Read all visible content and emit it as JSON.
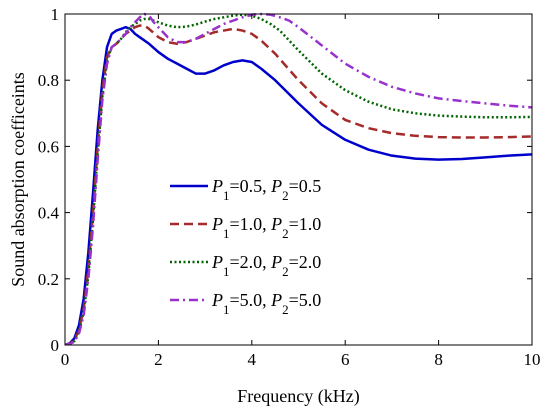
{
  "chart_data": {
    "type": "line",
    "xlabel": "Frequency (kHz)",
    "ylabel": "Sound absorption coefficeints",
    "xlim": [
      0,
      10
    ],
    "ylim": [
      0,
      1
    ],
    "xticks": [
      0,
      2,
      4,
      6,
      8,
      10
    ],
    "yticks": [
      0,
      0.2,
      0.4,
      0.6,
      0.8,
      1
    ],
    "grid": false,
    "legend_position": "center",
    "series": [
      {
        "name": "P1=0.5, P2=0.5",
        "color": "#0000CC",
        "dash": "solid",
        "x": [
          0,
          0.1,
          0.2,
          0.3,
          0.4,
          0.5,
          0.6,
          0.7,
          0.8,
          0.9,
          1.0,
          1.1,
          1.2,
          1.3,
          1.4,
          1.5,
          1.6,
          1.8,
          2.0,
          2.2,
          2.4,
          2.6,
          2.8,
          3.0,
          3.2,
          3.4,
          3.6,
          3.8,
          4.0,
          4.2,
          4.5,
          5.0,
          5.5,
          6.0,
          6.5,
          7.0,
          7.5,
          8.0,
          8.5,
          9.0,
          9.5,
          10.0
        ],
        "y": [
          0,
          0.005,
          0.02,
          0.06,
          0.14,
          0.28,
          0.46,
          0.65,
          0.8,
          0.9,
          0.94,
          0.95,
          0.955,
          0.96,
          0.955,
          0.94,
          0.93,
          0.91,
          0.885,
          0.865,
          0.85,
          0.835,
          0.82,
          0.82,
          0.83,
          0.845,
          0.855,
          0.86,
          0.855,
          0.835,
          0.8,
          0.73,
          0.665,
          0.62,
          0.59,
          0.572,
          0.563,
          0.56,
          0.562,
          0.567,
          0.572,
          0.576
        ]
      },
      {
        "name": "P1=1.0, P2=1.0",
        "color": "#A52A2A",
        "dash": "dashed",
        "x": [
          0,
          0.1,
          0.2,
          0.3,
          0.4,
          0.5,
          0.6,
          0.7,
          0.8,
          0.9,
          1.0,
          1.1,
          1.2,
          1.3,
          1.4,
          1.5,
          1.6,
          1.7,
          1.8,
          2.0,
          2.2,
          2.4,
          2.6,
          2.8,
          3.0,
          3.2,
          3.4,
          3.6,
          3.8,
          4.0,
          4.2,
          4.5,
          5.0,
          5.5,
          6.0,
          6.5,
          7.0,
          7.5,
          8.0,
          8.5,
          9.0,
          9.5,
          10.0
        ],
        "y": [
          0,
          0.004,
          0.015,
          0.045,
          0.11,
          0.23,
          0.4,
          0.6,
          0.77,
          0.87,
          0.9,
          0.91,
          0.925,
          0.94,
          0.95,
          0.96,
          0.965,
          0.965,
          0.955,
          0.93,
          0.915,
          0.91,
          0.915,
          0.925,
          0.935,
          0.945,
          0.95,
          0.955,
          0.95,
          0.94,
          0.92,
          0.88,
          0.8,
          0.73,
          0.68,
          0.655,
          0.64,
          0.632,
          0.628,
          0.627,
          0.627,
          0.628,
          0.63
        ]
      },
      {
        "name": "P1=2.0, P2=2.0",
        "color": "#006400",
        "dash": "dotted",
        "x": [
          0,
          0.1,
          0.2,
          0.3,
          0.4,
          0.5,
          0.6,
          0.7,
          0.8,
          0.9,
          1.0,
          1.1,
          1.2,
          1.3,
          1.4,
          1.5,
          1.6,
          1.7,
          1.8,
          1.9,
          2.0,
          2.2,
          2.4,
          2.6,
          2.8,
          3.0,
          3.2,
          3.4,
          3.6,
          3.8,
          4.0,
          4.2,
          4.4,
          4.6,
          5.0,
          5.5,
          6.0,
          6.5,
          7.0,
          7.5,
          8.0,
          8.5,
          9.0,
          9.5,
          10.0
        ],
        "y": [
          0,
          0.003,
          0.012,
          0.04,
          0.1,
          0.21,
          0.38,
          0.58,
          0.75,
          0.86,
          0.9,
          0.91,
          0.925,
          0.945,
          0.96,
          0.97,
          0.98,
          0.985,
          0.985,
          0.98,
          0.975,
          0.965,
          0.96,
          0.962,
          0.968,
          0.977,
          0.985,
          0.99,
          0.995,
          0.998,
          0.995,
          0.985,
          0.97,
          0.95,
          0.89,
          0.82,
          0.77,
          0.735,
          0.712,
          0.7,
          0.693,
          0.69,
          0.688,
          0.688,
          0.689
        ]
      },
      {
        "name": "P1=5.0, P2=5.0",
        "color": "#9932CC",
        "dash": "dashdot",
        "x": [
          0,
          0.1,
          0.2,
          0.3,
          0.4,
          0.5,
          0.6,
          0.7,
          0.8,
          0.9,
          1.0,
          1.1,
          1.2,
          1.3,
          1.4,
          1.5,
          1.6,
          1.7,
          1.8,
          1.9,
          2.0,
          2.2,
          2.4,
          2.6,
          2.8,
          3.0,
          3.2,
          3.4,
          3.6,
          3.8,
          4.0,
          4.2,
          4.4,
          4.6,
          4.8,
          5.0,
          5.5,
          6.0,
          6.5,
          7.0,
          7.5,
          8.0,
          8.5,
          9.0,
          9.5,
          10.0
        ],
        "y": [
          0,
          0.003,
          0.01,
          0.035,
          0.09,
          0.2,
          0.36,
          0.56,
          0.74,
          0.85,
          0.9,
          0.91,
          0.925,
          0.94,
          0.96,
          0.975,
          0.99,
          1.0,
          0.995,
          0.975,
          0.96,
          0.93,
          0.915,
          0.915,
          0.925,
          0.94,
          0.955,
          0.97,
          0.98,
          0.99,
          0.998,
          1.0,
          0.998,
          0.99,
          0.98,
          0.96,
          0.905,
          0.85,
          0.81,
          0.78,
          0.76,
          0.745,
          0.737,
          0.73,
          0.723,
          0.718
        ]
      }
    ],
    "legend": [
      {
        "p1_label": "P",
        "p1_sub": "1",
        "p1_val": "=0.5, ",
        "p2_label": "P",
        "p2_sub": "2",
        "p2_val": "=0.5"
      },
      {
        "p1_label": "P",
        "p1_sub": "1",
        "p1_val": "=1.0, ",
        "p2_label": "P",
        "p2_sub": "2",
        "p2_val": "=1.0"
      },
      {
        "p1_label": "P",
        "p1_sub": "1",
        "p1_val": "=2.0, ",
        "p2_label": "P",
        "p2_sub": "2",
        "p2_val": "=2.0"
      },
      {
        "p1_label": "P",
        "p1_sub": "1",
        "p1_val": "=5.0, ",
        "p2_label": "P",
        "p2_sub": "2",
        "p2_val": "=5.0"
      }
    ]
  }
}
